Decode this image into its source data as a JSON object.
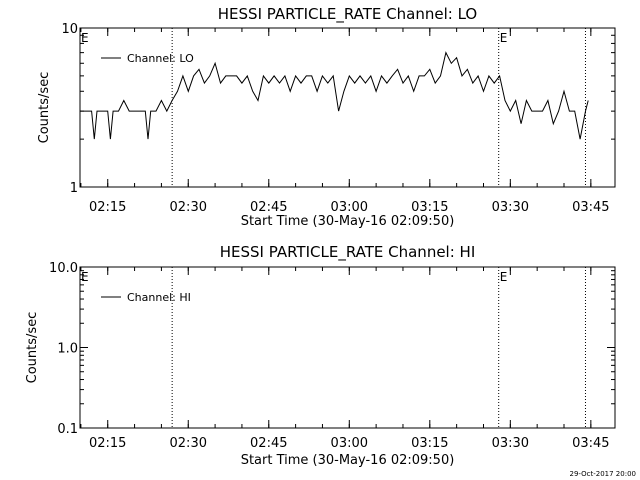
{
  "colors": {
    "background": "#ffffff",
    "foreground": "#000000"
  },
  "footer": {
    "timestamp": "29-Oct-2017 20:00"
  },
  "chart_data": [
    {
      "type": "line",
      "title": "HESSI PARTICLE_RATE Channel: LO",
      "xlabel": "Start Time (30-May-16 02:09:50)",
      "ylabel": "Counts/sec",
      "yscale": "log",
      "ylim": [
        1,
        10
      ],
      "ytick_labels": [
        "1",
        "10"
      ],
      "ytick_values": [
        1,
        10
      ],
      "xlim": [
        "02:09:50",
        "03:49:30"
      ],
      "xtick_labels": [
        "02:15",
        "02:30",
        "02:45",
        "03:00",
        "03:15",
        "03:30",
        "03:45"
      ],
      "xtick_values": [
        "02:15",
        "02:30",
        "02:45",
        "03:00",
        "03:15",
        "03:30",
        "03:45"
      ],
      "legend": {
        "label": "Channel: LO",
        "placement": "top-left"
      },
      "event_markers": [
        {
          "label": "E",
          "time": "02:09:50"
        },
        {
          "label": "",
          "time": "02:27:00"
        },
        {
          "label": "E",
          "time": "03:27:50"
        },
        {
          "label": "",
          "time": "03:44:00"
        }
      ],
      "series": [
        {
          "name": "Channel: LO",
          "x": [
            "02:09:50",
            "02:11:00",
            "02:12:00",
            "02:12:30",
            "02:13:00",
            "02:14:00",
            "02:15:00",
            "02:15:30",
            "02:16:00",
            "02:17:00",
            "02:18:00",
            "02:19:00",
            "02:20:00",
            "02:21:00",
            "02:22:00",
            "02:22:30",
            "02:23:00",
            "02:24:00",
            "02:25:00",
            "02:26:00",
            "02:27:00",
            "02:28:00",
            "02:29:00",
            "02:30:00",
            "02:31:00",
            "02:32:00",
            "02:33:00",
            "02:34:00",
            "02:35:00",
            "02:36:00",
            "02:37:00",
            "02:38:00",
            "02:39:00",
            "02:40:00",
            "02:41:00",
            "02:42:00",
            "02:43:00",
            "02:44:00",
            "02:45:00",
            "02:46:00",
            "02:47:00",
            "02:48:00",
            "02:49:00",
            "02:50:00",
            "02:51:00",
            "02:52:00",
            "02:53:00",
            "02:54:00",
            "02:55:00",
            "02:56:00",
            "02:57:00",
            "02:58:00",
            "02:59:00",
            "03:00:00",
            "03:01:00",
            "03:02:00",
            "03:03:00",
            "03:04:00",
            "03:05:00",
            "03:06:00",
            "03:07:00",
            "03:08:00",
            "03:09:00",
            "03:10:00",
            "03:11:00",
            "03:12:00",
            "03:13:00",
            "03:14:00",
            "03:15:00",
            "03:16:00",
            "03:17:00",
            "03:18:00",
            "03:19:00",
            "03:20:00",
            "03:21:00",
            "03:22:00",
            "03:23:00",
            "03:24:00",
            "03:25:00",
            "03:26:00",
            "03:27:00",
            "03:28:00",
            "03:29:00",
            "03:30:00",
            "03:31:00",
            "03:32:00",
            "03:33:00",
            "03:34:00",
            "03:35:00",
            "03:36:00",
            "03:37:00",
            "03:38:00",
            "03:39:00",
            "03:40:00",
            "03:41:00",
            "03:42:00",
            "03:43:00",
            "03:44:00",
            "03:44:30"
          ],
          "values": [
            3,
            3,
            3,
            2,
            3,
            3,
            3,
            2,
            3,
            3,
            3.5,
            3,
            3,
            3,
            3,
            2,
            3,
            3,
            3.5,
            3,
            3.5,
            4,
            5,
            4,
            5,
            5.5,
            4.5,
            5,
            6,
            4.5,
            5,
            5,
            5,
            4.5,
            5,
            4,
            3.5,
            5,
            4.5,
            5,
            4.5,
            5,
            4,
            5,
            4.5,
            5,
            5,
            4,
            5,
            4.5,
            5,
            3,
            4,
            5,
            4.5,
            5,
            4.5,
            5,
            4,
            5,
            4.5,
            5,
            5.5,
            4.5,
            5,
            4,
            5,
            5,
            5.5,
            4.5,
            5,
            7,
            6,
            6.5,
            5,
            5.5,
            4.5,
            5,
            4,
            5,
            4.5,
            5,
            3.5,
            3,
            3.5,
            2.5,
            3.5,
            3,
            3,
            3,
            3.5,
            2.5,
            3,
            4,
            3,
            3,
            2,
            3,
            3.5
          ]
        }
      ]
    },
    {
      "type": "line",
      "title": "HESSI PARTICLE_RATE Channel: HI",
      "xlabel": "Start Time (30-May-16 02:09:50)",
      "ylabel": "Counts/sec",
      "yscale": "log",
      "ylim": [
        0.1,
        10
      ],
      "ytick_labels": [
        "0.1",
        "1.0",
        "10.0"
      ],
      "ytick_values": [
        0.1,
        1,
        10
      ],
      "xlim": [
        "02:09:50",
        "03:49:30"
      ],
      "xtick_labels": [
        "02:15",
        "02:30",
        "02:45",
        "03:00",
        "03:15",
        "03:30",
        "03:45"
      ],
      "xtick_values": [
        "02:15",
        "02:30",
        "02:45",
        "03:00",
        "03:15",
        "03:30",
        "03:45"
      ],
      "legend": {
        "label": "Channel: HI",
        "placement": "top-left"
      },
      "event_markers": [
        {
          "label": "E",
          "time": "02:09:50"
        },
        {
          "label": "",
          "time": "02:27:00"
        },
        {
          "label": "E",
          "time": "03:27:50"
        },
        {
          "label": "",
          "time": "03:44:00"
        }
      ],
      "series": [
        {
          "name": "Channel: HI",
          "x": [],
          "values": []
        }
      ]
    }
  ]
}
